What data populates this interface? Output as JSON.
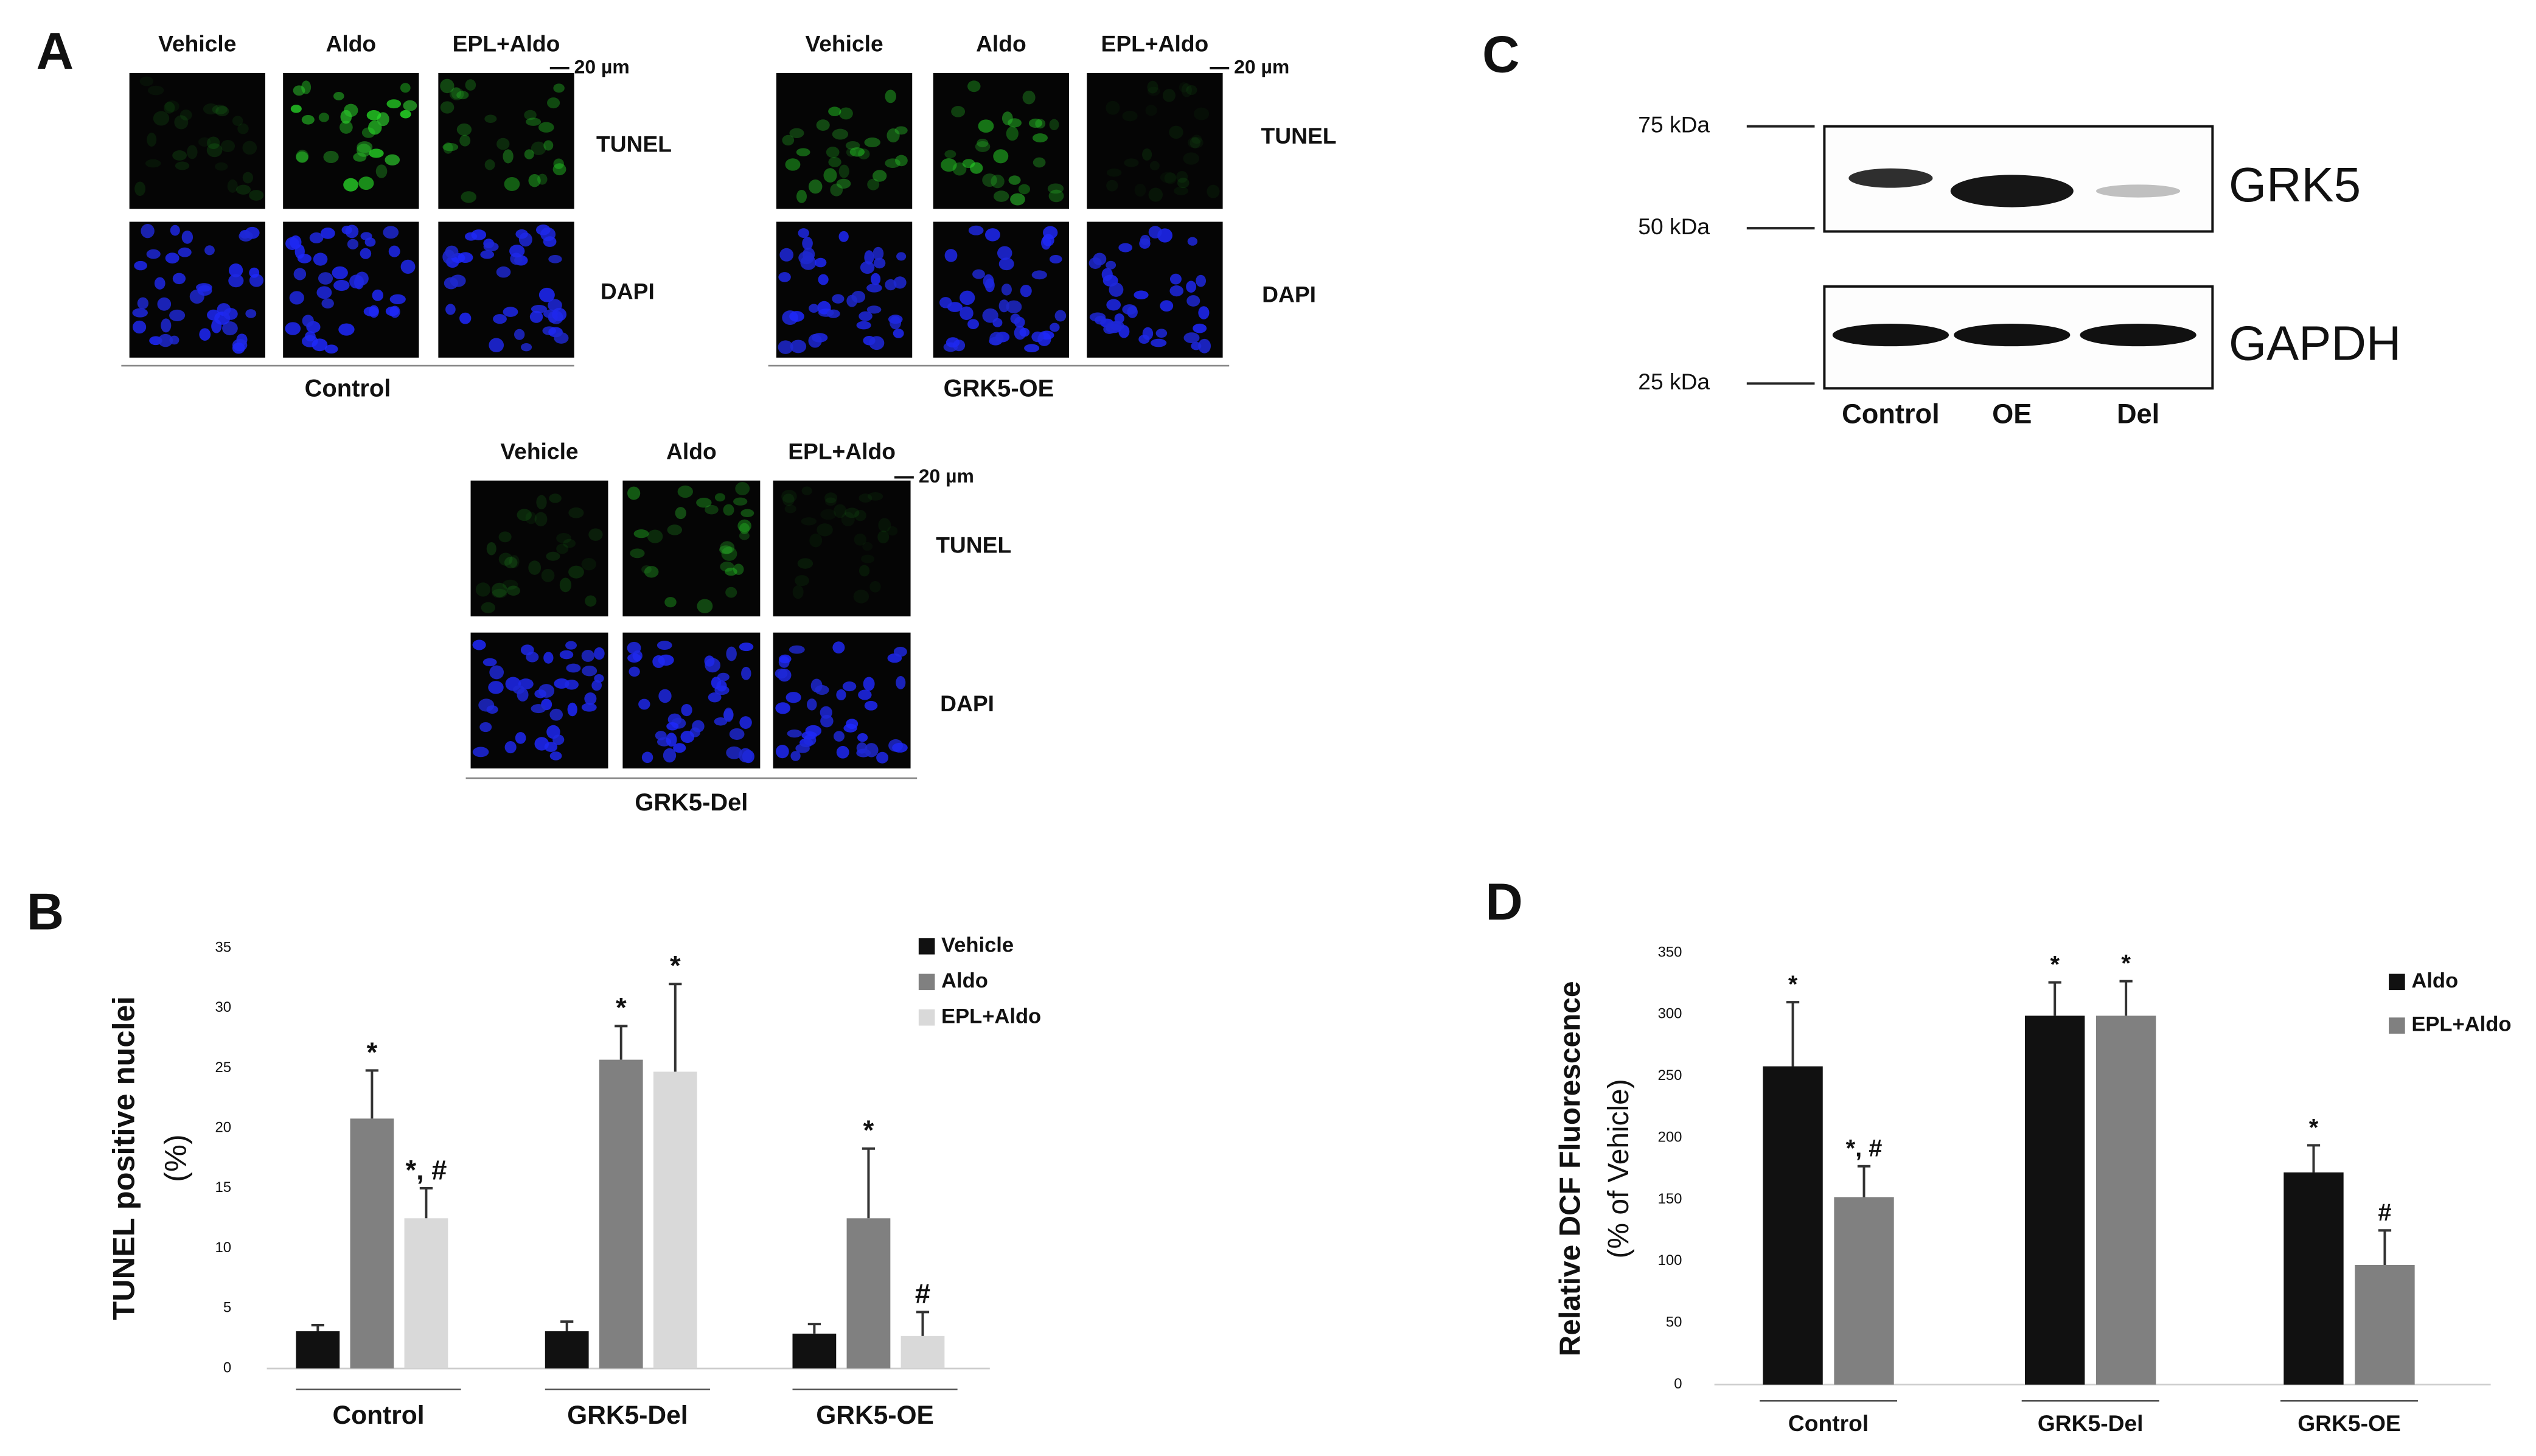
{
  "panel_labels": [
    "A",
    "B",
    "C",
    "D"
  ],
  "panel_a": {
    "groups": [
      {
        "label": "Control",
        "columns": [
          "Vehicle",
          "Aldo",
          "EPL+Aldo"
        ],
        "rows": [
          "TUNEL",
          "DAPI"
        ],
        "scale_bar": "20 µm"
      },
      {
        "label": "GRK5-OE",
        "columns": [
          "Vehicle",
          "Aldo",
          "EPL+Aldo"
        ],
        "rows": [
          "TUNEL",
          "DAPI"
        ],
        "scale_bar": "20 µm"
      },
      {
        "label": "GRK5-Del",
        "columns": [
          "Vehicle",
          "Aldo",
          "EPL+Aldo"
        ],
        "rows": [
          "TUNEL",
          "DAPI"
        ],
        "scale_bar": "20 µm"
      }
    ]
  },
  "panel_c": {
    "markers": [
      "75 kDa",
      "50 kDa",
      "25 kDa"
    ],
    "proteins": [
      "GRK5",
      "GAPDH"
    ],
    "lanes": [
      "Control",
      "OE",
      "Del"
    ]
  },
  "chart_data": [
    {
      "type": "bar",
      "ylabel": [
        "TUNEL positive nuclei",
        "(%)"
      ],
      "categories": [
        "Control",
        "GRK5-Del",
        "GRK5-OE"
      ],
      "ylim": [
        0,
        35
      ],
      "yticks": [
        0,
        5,
        10,
        15,
        20,
        25,
        30,
        35
      ],
      "legend": "top-right",
      "series": [
        {
          "name": "Vehicle",
          "color": "#111111",
          "values": [
            3.1,
            3.1,
            2.9
          ],
          "errors": [
            0.5,
            0.8,
            0.8
          ],
          "annotations": [
            null,
            null,
            null
          ]
        },
        {
          "name": "Aldo",
          "color": "#808080",
          "values": [
            20.8,
            25.7,
            12.5
          ],
          "errors": [
            4.0,
            2.8,
            5.8
          ],
          "annotations": [
            "*",
            "*",
            "*"
          ]
        },
        {
          "name": "EPL+Aldo",
          "color": "#d9d9d9",
          "values": [
            12.5,
            24.7,
            2.7
          ],
          "errors": [
            2.5,
            7.3,
            2.0
          ],
          "annotations": [
            "*, #",
            "*",
            "#"
          ]
        }
      ]
    },
    {
      "type": "bar",
      "ylabel": [
        "Relative DCF Fluorescence",
        "(% of Vehicle)"
      ],
      "categories": [
        "Control",
        "GRK5-Del",
        "GRK5-OE"
      ],
      "ylim": [
        0,
        350
      ],
      "yticks": [
        0,
        50,
        100,
        150,
        200,
        250,
        300,
        350
      ],
      "legend": "top-right",
      "series": [
        {
          "name": "Aldo",
          "color": "#111111",
          "values": [
            258,
            299,
            172
          ],
          "errors": [
            52,
            27,
            22
          ],
          "annotations": [
            "*",
            "*",
            "*"
          ]
        },
        {
          "name": "EPL+Aldo",
          "color": "#808080",
          "values": [
            152,
            299,
            97
          ],
          "errors": [
            25,
            28,
            28
          ],
          "annotations": [
            "*, #",
            "*",
            "#"
          ]
        }
      ]
    }
  ]
}
